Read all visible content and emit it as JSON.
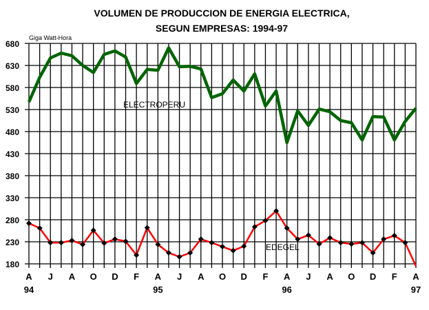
{
  "chart_data": {
    "type": "line",
    "title": [
      "VOLUMEN DE PRODUCCION DE ENERGIA ELECTRICA,",
      "SEGUN EMPRESAS: 1994-97"
    ],
    "ylabel": "Giga Watt-Hora",
    "ylim": [
      180,
      680
    ],
    "yticks": [
      180,
      230,
      280,
      330,
      380,
      430,
      480,
      530,
      580,
      630,
      680
    ],
    "xtick_labels": [
      "A",
      "J",
      "A",
      "O",
      "D",
      "F",
      "A",
      "J",
      "A",
      "O",
      "D",
      "F",
      "A",
      "J",
      "A",
      "O",
      "D",
      "F",
      "A"
    ],
    "year_labels": [
      {
        "label": "94",
        "index": 0
      },
      {
        "label": "95",
        "index": 12
      },
      {
        "label": "96",
        "index": 24
      },
      {
        "label": "97",
        "index": 36
      }
    ],
    "grid": true,
    "series": [
      {
        "name": "ELECTROPERU",
        "color": "#006400",
        "values": [
          547,
          603,
          647,
          658,
          652,
          630,
          614,
          655,
          663,
          649,
          589,
          621,
          619,
          670,
          627,
          628,
          622,
          557,
          566,
          597,
          572,
          611,
          538,
          572,
          455,
          527,
          494,
          531,
          525,
          505,
          500,
          461,
          514,
          513,
          461,
          503,
          533
        ]
      },
      {
        "name": "EDEGEL",
        "color": "#ff0000",
        "values": [
          272,
          261,
          228,
          228,
          233,
          224,
          256,
          227,
          236,
          231,
          200,
          262,
          224,
          205,
          196,
          205,
          236,
          228,
          219,
          210,
          220,
          264,
          278,
          300,
          261,
          236,
          245,
          225,
          239,
          228,
          225,
          228,
          205,
          236,
          244,
          228,
          175
        ]
      }
    ]
  }
}
